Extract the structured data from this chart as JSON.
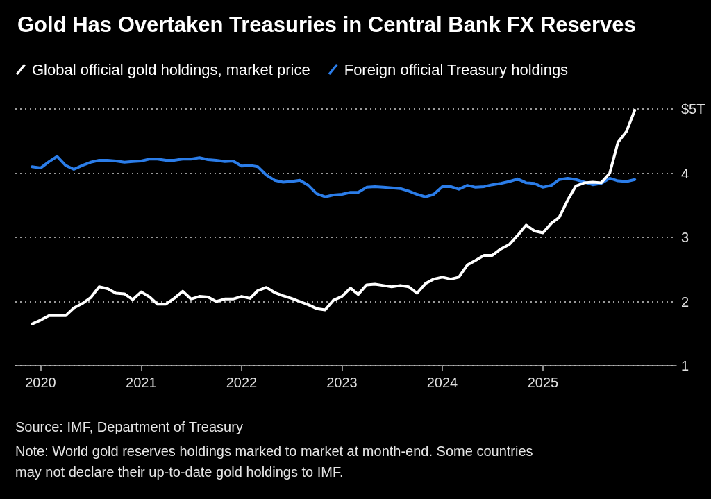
{
  "chart_data": {
    "type": "line",
    "title": "Gold Has Overtaken Treasuries in Central Bank FX Reserves",
    "annotations": [
      "Source: IMF, Department of Treasury",
      "Note: World gold reserves holdings marked to market at month-end. Some countries may not declare their up-to-date gold holdings to IMF."
    ],
    "x": [
      "2019-12",
      "2020-01",
      "2020-02",
      "2020-03",
      "2020-04",
      "2020-05",
      "2020-06",
      "2020-07",
      "2020-08",
      "2020-09",
      "2020-10",
      "2020-11",
      "2020-12",
      "2021-01",
      "2021-02",
      "2021-03",
      "2021-04",
      "2021-05",
      "2021-06",
      "2021-07",
      "2021-08",
      "2021-09",
      "2021-10",
      "2021-11",
      "2021-12",
      "2022-01",
      "2022-02",
      "2022-03",
      "2022-04",
      "2022-05",
      "2022-06",
      "2022-07",
      "2022-08",
      "2022-09",
      "2022-10",
      "2022-11",
      "2022-12",
      "2023-01",
      "2023-02",
      "2023-03",
      "2023-04",
      "2023-05",
      "2023-06",
      "2023-07",
      "2023-08",
      "2023-09",
      "2023-10",
      "2023-11",
      "2023-12",
      "2024-01",
      "2024-02",
      "2024-03",
      "2024-04",
      "2024-05",
      "2024-06",
      "2024-07",
      "2024-08",
      "2024-09",
      "2024-10",
      "2024-11",
      "2024-12",
      "2025-01",
      "2025-02",
      "2025-03",
      "2025-04",
      "2025-05",
      "2025-06",
      "2025-07",
      "2025-08",
      "2025-09",
      "2025-10",
      "2025-11",
      "2025-12"
    ],
    "series": [
      {
        "name": "Global official gold holdings, market price",
        "color": "#ffffff",
        "values": [
          1.65,
          1.71,
          1.78,
          1.78,
          1.78,
          1.9,
          1.97,
          2.06,
          2.23,
          2.2,
          2.13,
          2.12,
          2.03,
          2.15,
          2.07,
          1.96,
          1.96,
          2.05,
          2.16,
          2.04,
          2.08,
          2.07,
          2.0,
          2.04,
          2.04,
          2.08,
          2.05,
          2.17,
          2.22,
          2.14,
          2.09,
          2.05,
          2.0,
          1.95,
          1.89,
          1.87,
          2.02,
          2.08,
          2.21,
          2.11,
          2.26,
          2.27,
          2.25,
          2.23,
          2.25,
          2.23,
          2.13,
          2.28,
          2.35,
          2.38,
          2.35,
          2.38,
          2.57,
          2.64,
          2.72,
          2.72,
          2.82,
          2.89,
          3.03,
          3.19,
          3.1,
          3.07,
          3.22,
          3.31,
          3.58,
          3.8,
          3.85,
          3.86,
          3.85,
          4.0,
          4.48,
          4.65,
          4.98
        ]
      },
      {
        "name": "Foreign official Treasury holdings",
        "color": "#2b7de9",
        "values": [
          4.1,
          4.08,
          4.18,
          4.26,
          4.12,
          4.06,
          4.12,
          4.17,
          4.2,
          4.2,
          4.19,
          4.17,
          4.18,
          4.19,
          4.22,
          4.22,
          4.2,
          4.2,
          4.22,
          4.22,
          4.24,
          4.21,
          4.2,
          4.18,
          4.19,
          4.11,
          4.12,
          4.1,
          3.97,
          3.89,
          3.86,
          3.87,
          3.89,
          3.81,
          3.68,
          3.63,
          3.66,
          3.67,
          3.7,
          3.7,
          3.78,
          3.79,
          3.78,
          3.77,
          3.76,
          3.72,
          3.67,
          3.63,
          3.67,
          3.79,
          3.79,
          3.75,
          3.81,
          3.78,
          3.79,
          3.82,
          3.84,
          3.87,
          3.91,
          3.85,
          3.84,
          3.78,
          3.81,
          3.9,
          3.92,
          3.9,
          3.86,
          3.82,
          3.84,
          3.92,
          3.88,
          3.87,
          3.9
        ]
      }
    ],
    "xlim": [
      "2019-10",
      "2026-05"
    ],
    "xticks": [
      "2020",
      "2021",
      "2022",
      "2023",
      "2024",
      "2025"
    ],
    "ylim": [
      1,
      5
    ],
    "yticks": [
      1,
      2,
      3,
      4,
      {
        "value": 5,
        "label": "$5T"
      }
    ],
    "grid": "y",
    "legend": "top left"
  }
}
